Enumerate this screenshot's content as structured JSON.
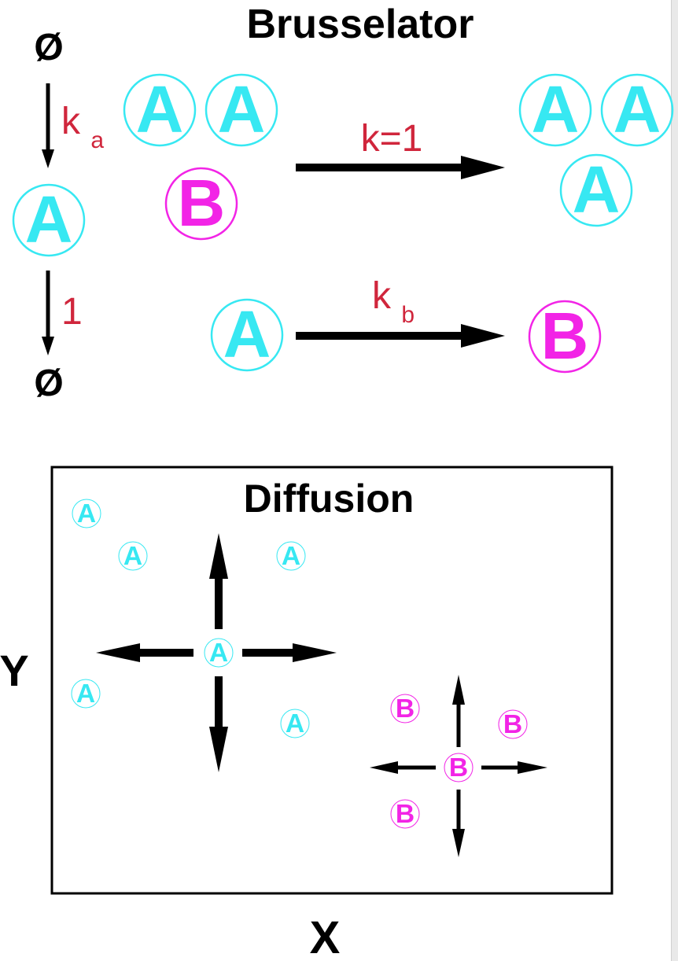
{
  "title": "Brusselator",
  "null_symbol": "Ø",
  "reactions": {
    "creation": {
      "rate_main": "k",
      "rate_sub": "a"
    },
    "decay": {
      "rate": "1"
    },
    "autocatalytic": {
      "rate": "k=1"
    },
    "conversion": {
      "rate_main": "k",
      "rate_sub": "b"
    }
  },
  "species": {
    "a_label": "A",
    "b_label": "B"
  },
  "diffusion": {
    "title": "Diffusion",
    "x_label": "X",
    "y_label": "Y"
  },
  "colors": {
    "a_species": "#37e8f2",
    "b_species": "#f224e6",
    "rate_label": "#d0263c",
    "arrow": "#000000"
  }
}
